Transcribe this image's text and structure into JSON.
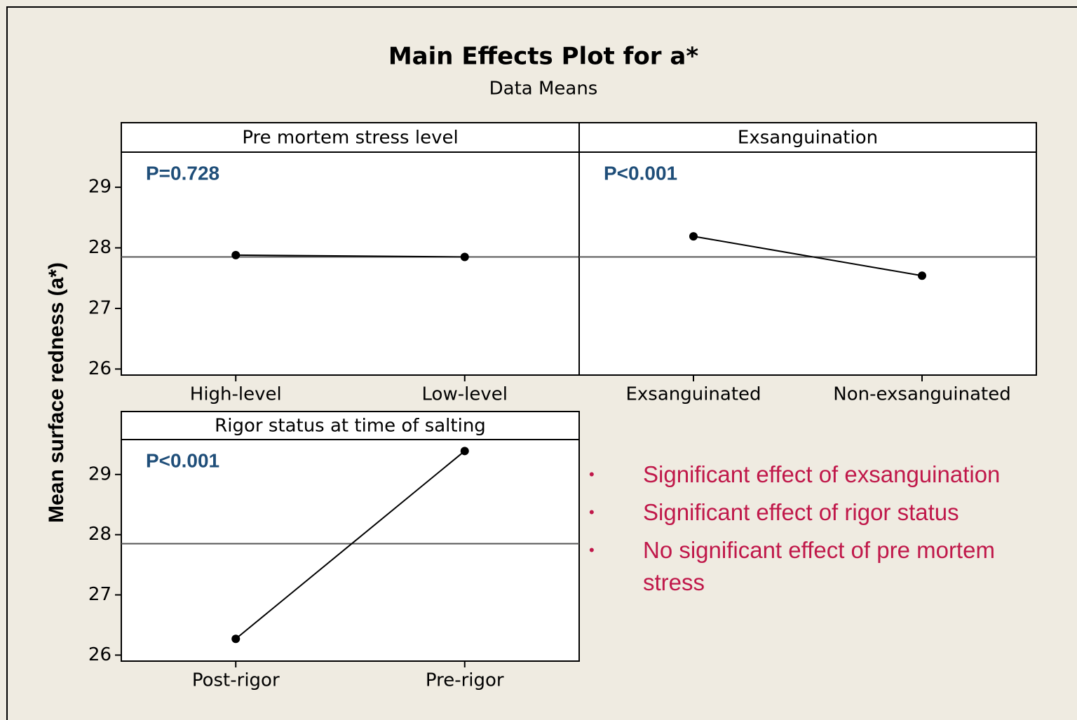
{
  "header": {
    "title": "Main Effects Plot for a*",
    "subtitle": "Data Means",
    "y_label": "Mean surface redness (a*)"
  },
  "notes": [
    "Significant effect of exsanguination",
    "Significant effect of rigor status",
    "No significant effect of pre mortem stress"
  ],
  "chart_data": [
    {
      "type": "line",
      "title": "Pre mortem stress level",
      "annotation": "P=0.728",
      "categories": [
        "High-level",
        "Low-level"
      ],
      "values": [
        27.88,
        27.85
      ],
      "color": "#000000",
      "reference_line": 27.85,
      "ylim": [
        25.9,
        29.58
      ],
      "yticks": [
        26,
        27,
        28,
        29
      ]
    },
    {
      "type": "line",
      "title": "Exsanguination",
      "annotation": "P<0.001",
      "categories": [
        "Exsanguinated",
        "Non-exsanguinated"
      ],
      "values": [
        28.19,
        27.54
      ],
      "color": "#000000",
      "reference_line": 27.85,
      "ylim": [
        25.9,
        29.58
      ]
    },
    {
      "type": "line",
      "title": "Rigor status at time of salting",
      "annotation": "P<0.001",
      "categories": [
        "Post-rigor",
        "Pre-rigor"
      ],
      "values": [
        26.27,
        29.39
      ],
      "color": "#000000",
      "reference_line": 27.85,
      "ylim": [
        25.9,
        29.58
      ],
      "yticks": [
        26,
        27,
        28,
        29
      ]
    }
  ]
}
